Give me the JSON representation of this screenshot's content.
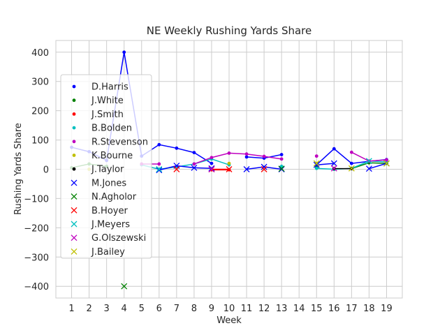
{
  "chart_data": {
    "type": "line",
    "title": "NE Weekly Rushing Yards Share",
    "xlabel": "Week",
    "ylabel": "Rushing Yards Share",
    "xlim": [
      0.1,
      19.9
    ],
    "ylim": [
      -440,
      440
    ],
    "xticks": [
      1,
      2,
      3,
      4,
      5,
      6,
      7,
      8,
      9,
      10,
      11,
      12,
      13,
      14,
      15,
      16,
      17,
      18,
      19
    ],
    "yticks": [
      -400,
      -300,
      -200,
      -100,
      0,
      100,
      200,
      300,
      400
    ],
    "ytick_labels": [
      "−400",
      "−300",
      "−200",
      "−100",
      "0",
      "100",
      "200",
      "300",
      "400"
    ],
    "grid": true,
    "legend_position": "center-left",
    "series": [
      {
        "name": "D.Harris",
        "color": "#0000ff",
        "marker": "dot",
        "points": [
          [
            1,
            75
          ],
          [
            2,
            60
          ],
          [
            3,
            30
          ],
          [
            4,
            400
          ],
          [
            5,
            45
          ],
          [
            6,
            84
          ],
          [
            7,
            72
          ],
          [
            8,
            57
          ],
          [
            9,
            20
          ],
          [
            11,
            42
          ],
          [
            12,
            38
          ],
          [
            13,
            50
          ],
          [
            15,
            15
          ],
          [
            16,
            70
          ],
          [
            17,
            20
          ],
          [
            18,
            27
          ],
          [
            19,
            33
          ]
        ]
      },
      {
        "name": "J.White",
        "color": "#008000",
        "marker": "dot",
        "points": [
          [
            1,
            5
          ],
          [
            2,
            18
          ],
          [
            3,
            10
          ],
          [
            13,
            8
          ],
          [
            15,
            5
          ],
          [
            17,
            2
          ],
          [
            18,
            22
          ],
          [
            19,
            20
          ]
        ]
      },
      {
        "name": "J.Smith",
        "color": "#ff0000",
        "marker": "dot",
        "points": [
          [
            9,
            -2
          ],
          [
            10,
            -2
          ]
        ]
      },
      {
        "name": "B.Bolden",
        "color": "#00bfbf",
        "marker": "dot",
        "points": [
          [
            5,
            15
          ],
          [
            6,
            0
          ],
          [
            7,
            8
          ],
          [
            8,
            18
          ],
          [
            9,
            35
          ],
          [
            10,
            15
          ],
          [
            13,
            10
          ],
          [
            15,
            3
          ],
          [
            16,
            0
          ],
          [
            17,
            3
          ],
          [
            18,
            28
          ],
          [
            19,
            25
          ]
        ]
      },
      {
        "name": "R.Stevenson",
        "color": "#bf00bf",
        "marker": "dot",
        "points": [
          [
            5,
            18
          ],
          [
            6,
            18
          ],
          [
            8,
            18
          ],
          [
            9,
            40
          ],
          [
            10,
            55
          ],
          [
            11,
            52
          ],
          [
            12,
            44
          ],
          [
            13,
            35
          ],
          [
            15,
            45
          ],
          [
            17,
            58
          ],
          [
            18,
            28
          ],
          [
            19,
            32
          ]
        ]
      },
      {
        "name": "K.Bourne",
        "color": "#bfbf00",
        "marker": "dot",
        "points": [
          [
            2,
            0
          ],
          [
            10,
            20
          ],
          [
            15,
            20
          ],
          [
            17,
            2
          ]
        ]
      },
      {
        "name": "J.Taylor",
        "color": "#000000",
        "marker": "dot",
        "points": [
          [
            16,
            2
          ],
          [
            17,
            2
          ]
        ]
      },
      {
        "name": "M.Jones",
        "color": "#0000ff",
        "marker": "x",
        "points": [
          [
            6,
            -3
          ],
          [
            7,
            12
          ],
          [
            8,
            5
          ],
          [
            9,
            3
          ],
          [
            11,
            0
          ],
          [
            12,
            8
          ],
          [
            13,
            0
          ],
          [
            15,
            15
          ],
          [
            16,
            20
          ],
          [
            18,
            2
          ],
          [
            19,
            20
          ]
        ]
      },
      {
        "name": "N.Agholor",
        "color": "#008000",
        "marker": "x",
        "points": [
          [
            4,
            -400
          ],
          [
            13,
            2
          ]
        ]
      },
      {
        "name": "B.Hoyer",
        "color": "#ff0000",
        "marker": "x",
        "points": [
          [
            7,
            0
          ],
          [
            9,
            0
          ],
          [
            10,
            0
          ],
          [
            12,
            0
          ]
        ]
      },
      {
        "name": "J.Meyers",
        "color": "#00bfbf",
        "marker": "x",
        "points": [
          [
            6,
            0
          ],
          [
            18,
            28
          ]
        ]
      },
      {
        "name": "G.Olszewski",
        "color": "#bf00bf",
        "marker": "x",
        "points": [
          [
            9,
            0
          ],
          [
            16,
            3
          ]
        ]
      },
      {
        "name": "J.Bailey",
        "color": "#bfbf00",
        "marker": "x",
        "points": [
          [
            15,
            20
          ],
          [
            17,
            3
          ],
          [
            19,
            20
          ]
        ]
      }
    ]
  }
}
